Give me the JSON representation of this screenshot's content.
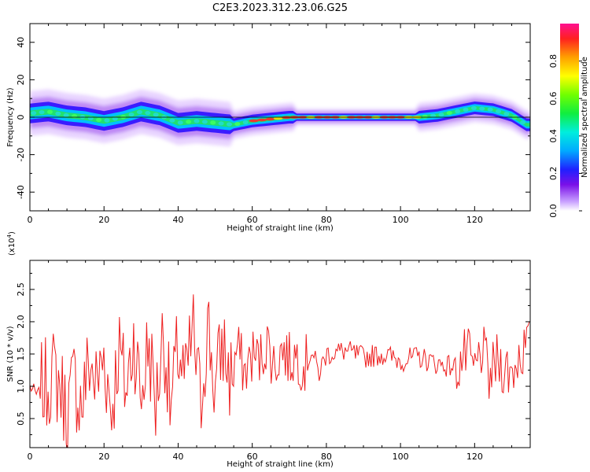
{
  "title": "C2E3.2023.312.23.06.G25",
  "chart_data": [
    {
      "type": "heatmap",
      "xlabel": "Height of straight line (km)",
      "ylabel": "Frequency (Hz)",
      "xlim": [
        0,
        135
      ],
      "ylim": [
        -50,
        50
      ],
      "xticks": [
        "0",
        "20",
        "40",
        "60",
        "80",
        "100",
        "120"
      ],
      "yticks": [
        "-40",
        "-20",
        "0",
        "20",
        "40"
      ],
      "ridge": {
        "x": [
          0,
          5,
          10,
          15,
          20,
          25,
          30,
          35,
          40,
          45,
          50,
          55,
          60,
          65,
          70,
          75,
          80,
          85,
          90,
          95,
          100,
          105,
          110,
          115,
          120,
          125,
          130,
          134
        ],
        "y": [
          2,
          3,
          1,
          0,
          -2,
          0,
          3,
          1,
          -3,
          -2,
          -3,
          -4,
          -2,
          -1,
          0,
          0,
          0,
          0,
          0,
          0,
          0,
          0,
          1,
          3,
          5,
          4,
          1,
          -4
        ]
      },
      "colorbar": {
        "label": "Normalized spectral amplitude",
        "range": [
          0,
          1
        ],
        "ticks": [
          "0.0",
          "0.2",
          "0.4",
          "0.6",
          "0.8"
        ]
      }
    },
    {
      "type": "line",
      "xlabel": "Height of straight line (km)",
      "ylabel": "SNR (10 * v/v)",
      "scale_label": "(x10",
      "scale_exp": "4",
      "xlim": [
        0,
        135
      ],
      "ylim": [
        0.05,
        2.95
      ],
      "xticks": [
        "0",
        "20",
        "40",
        "60",
        "80",
        "100",
        "120"
      ],
      "yticks": [
        "0.5",
        "1.0",
        "1.5",
        "2.0",
        "2.5"
      ],
      "color": "#ee2020",
      "series": {
        "x": [
          0,
          2,
          4,
          6,
          8,
          10,
          12,
          14,
          16,
          18,
          20,
          22,
          24,
          26,
          28,
          30,
          32,
          34,
          36,
          38,
          40,
          42,
          44,
          46,
          48,
          50,
          52,
          54,
          56,
          58,
          60,
          62,
          64,
          66,
          68,
          70,
          72,
          74,
          76,
          78,
          80,
          85,
          90,
          95,
          100,
          105,
          110,
          115,
          118,
          120,
          122,
          124,
          126,
          128,
          130,
          132,
          134
        ],
        "y": [
          1.0,
          0.85,
          1.0,
          1.2,
          1.05,
          0.6,
          1.1,
          0.7,
          1.4,
          1.0,
          1.5,
          0.6,
          1.6,
          0.9,
          1.8,
          0.8,
          1.7,
          0.7,
          1.9,
          0.6,
          1.6,
          1.0,
          1.9,
          0.7,
          2.0,
          0.9,
          1.7,
          1.1,
          1.6,
          1.2,
          1.5,
          1.4,
          1.7,
          1.3,
          1.6,
          1.4,
          1.5,
          1.3,
          1.55,
          1.2,
          1.5,
          1.55,
          1.45,
          1.5,
          1.4,
          1.45,
          1.35,
          1.3,
          1.5,
          1.2,
          1.6,
          1.1,
          1.4,
          1.3,
          1.2,
          1.5,
          1.6
        ]
      }
    }
  ]
}
